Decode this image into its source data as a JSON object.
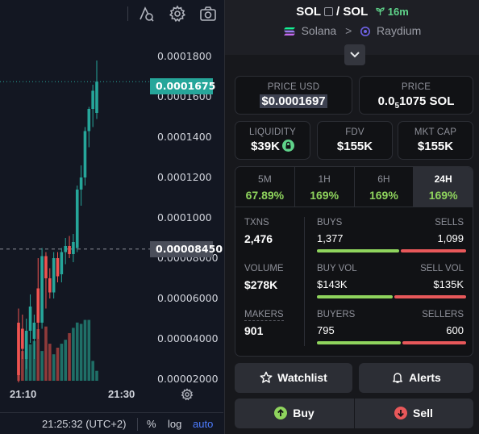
{
  "chart": {
    "y_ticks": [
      "0.0001800",
      "0.0001600",
      "0.0001400",
      "0.0001200",
      "0.0001000",
      "0.00008000",
      "0.00006000",
      "0.00004000",
      "0.00002000"
    ],
    "current_price_tag": "0.0001675",
    "crosshair_price_tag": "0.00008450",
    "x_ticks": [
      "21:10",
      "21:30"
    ],
    "footer": {
      "time": "21:25:32 (UTC+2)",
      "percent": "%",
      "log": "log",
      "auto": "auto"
    },
    "colors": {
      "up": "#26a69a",
      "down": "#ef5350",
      "up_volume": "#1f6f67",
      "down_volume": "#8f3a3a",
      "price_line": "#26a69a"
    }
  },
  "chart_data": {
    "type": "candlestick",
    "title": "",
    "ylim": [
      1.6e-05,
      0.000184
    ],
    "x_ticks": [
      "21:10",
      "21:30"
    ],
    "current_price": 0.0001675,
    "crosshair_price": 8.45e-05,
    "candles": [
      {
        "o": 4.8e-05,
        "h": 5.5e-05,
        "l": 1.8e-05,
        "c": 2.2e-05
      },
      {
        "o": 4.5e-05,
        "h": 5.2e-05,
        "l": 3e-05,
        "c": 3.5e-05
      },
      {
        "o": 3e-05,
        "h": 5e-05,
        "l": 2.5e-05,
        "c": 4.4e-05
      },
      {
        "o": 4.4e-05,
        "h": 6.2e-05,
        "l": 3.8e-05,
        "c": 5.6e-05
      },
      {
        "o": 4e-05,
        "h": 5.2e-05,
        "l": 3e-05,
        "c": 4.8e-05
      },
      {
        "o": 6.5e-05,
        "h": 8e-05,
        "l": 4e-05,
        "c": 4.8e-05
      },
      {
        "o": 4.8e-05,
        "h": 8.5e-05,
        "l": 4.5e-05,
        "c": 8.1e-05
      },
      {
        "o": 8.1e-05,
        "h": 8.3e-05,
        "l": 5.5e-05,
        "c": 7e-05
      },
      {
        "o": 7e-05,
        "h": 7.5e-05,
        "l": 6e-05,
        "c": 6.3e-05
      },
      {
        "o": 6.3e-05,
        "h": 8.3e-05,
        "l": 6e-05,
        "c": 8e-05
      },
      {
        "o": 8e-05,
        "h": 8.3e-05,
        "l": 6.8e-05,
        "c": 7.1e-05
      },
      {
        "o": 7.2e-05,
        "h": 8.5e-05,
        "l": 6.8e-05,
        "c": 8.3e-05
      },
      {
        "o": 8.3e-05,
        "h": 9e-05,
        "l": 7.7e-05,
        "c": 8.6e-05
      },
      {
        "o": 8.6e-05,
        "h": 9.1e-05,
        "l": 8e-05,
        "c": 8.2e-05
      },
      {
        "o": 8.2e-05,
        "h": 9.2e-05,
        "l": 7.8e-05,
        "c": 8.8e-05
      },
      {
        "o": 8.5e-05,
        "h": 0.000116,
        "l": 8.3e-05,
        "c": 0.000114
      },
      {
        "o": 0.000114,
        "h": 0.000126,
        "l": 0.000106,
        "c": 0.00012
      },
      {
        "o": 0.00012,
        "h": 0.000145,
        "l": 0.000116,
        "c": 0.000143
      },
      {
        "o": 0.000143,
        "h": 0.000155,
        "l": 0.000135,
        "c": 0.000154
      },
      {
        "o": 0.000154,
        "h": 0.000166,
        "l": 0.000145,
        "c": 0.000163
      },
      {
        "o": 0.000152,
        "h": 0.000178,
        "l": 0.000149,
        "c": 0.0001675
      }
    ],
    "volume": [
      0.8,
      0.45,
      0.72,
      0.55,
      0.6,
      0.78,
      0.45,
      0.82,
      0.56,
      0.4,
      0.5,
      0.56,
      0.62,
      0.72,
      0.8,
      0.88,
      0.86,
      0.92,
      0.92,
      0.3,
      0.15
    ]
  },
  "pair": {
    "base": "SOL",
    "separator": "/",
    "quote": "SOL",
    "age": "16m",
    "chain": "Solana",
    "chain_arrow": ">",
    "dex": "Raydium"
  },
  "price_usd": {
    "label": "PRICE USD",
    "value": "$0.0001697"
  },
  "price_native": {
    "label": "PRICE",
    "value_prefix": "0.0",
    "value_sub": "5",
    "value_rest": "1075 SOL"
  },
  "liquidity": {
    "label": "LIQUIDITY",
    "value": "$39K"
  },
  "fdv": {
    "label": "FDV",
    "value": "$155K"
  },
  "mkt_cap": {
    "label": "MKT CAP",
    "value": "$155K"
  },
  "timeframes": [
    {
      "label": "5M",
      "change": "67.89%"
    },
    {
      "label": "1H",
      "change": "169%"
    },
    {
      "label": "6H",
      "change": "169%"
    },
    {
      "label": "24H",
      "change": "169%"
    }
  ],
  "active_timeframe": "24H",
  "stats": {
    "txns": {
      "label": "TXNS",
      "value": "2,476"
    },
    "volume": {
      "label": "VOLUME",
      "value": "$278K"
    },
    "makers": {
      "label": "MAKERS",
      "value": "901"
    },
    "buys": {
      "label": "BUYS",
      "value": "1,377",
      "share": 0.556
    },
    "sells": {
      "label": "SELLS",
      "value": "1,099",
      "share": 0.444
    },
    "buy_vol": {
      "label": "BUY VOL",
      "value": "$143K",
      "share": 0.514
    },
    "sell_vol": {
      "label": "SELL VOL",
      "value": "$135K",
      "share": 0.486
    },
    "buyers": {
      "label": "BUYERS",
      "value": "795",
      "share": 0.57
    },
    "sellers": {
      "label": "SELLERS",
      "value": "600",
      "share": 0.43
    }
  },
  "actions": {
    "watchlist": "Watchlist",
    "alerts": "Alerts",
    "buy": "Buy",
    "sell": "Sell"
  },
  "colors": {
    "accent_green": "#8fd45d",
    "accent_red": "#e8585a",
    "age_green": "#5fd38a",
    "current_price_bg": "#26a69a"
  }
}
